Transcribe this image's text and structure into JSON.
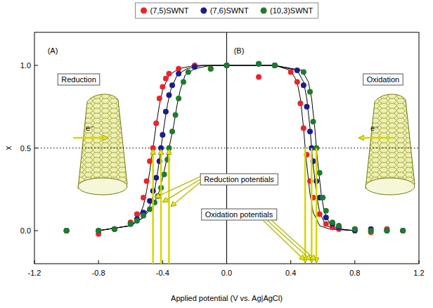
{
  "chart_data": {
    "type": "scatter",
    "xlabel": "Applied potential (V vs. Ag|AgCl)",
    "ylabel": "x",
    "xlim": [
      -1.2,
      1.2
    ],
    "ylim": [
      -0.2,
      1.2
    ],
    "xticks": [
      -1.2,
      -0.8,
      -0.4,
      {
        "value": 0,
        "label": "0.0"
      },
      0.4,
      0.8,
      1.2
    ],
    "yticks": [
      {
        "value": 0,
        "label": "0.0"
      },
      0.5,
      {
        "value": 1,
        "label": "1.0"
      }
    ],
    "legend": "top",
    "reference_line": 0.5,
    "reduction_potentials": [
      -0.46,
      -0.41,
      -0.36
    ],
    "oxidation_potentials": [
      0.49,
      0.53,
      0.56
    ],
    "annotations": [
      "(A)",
      "(B)",
      "Reduction",
      "Oxidation",
      "Reduction potentials",
      "Oxidation potentials",
      "e⁻",
      "e⁻"
    ],
    "series": [
      {
        "type": "line",
        "color": "#000000",
        "line_style": "solid",
        "x": [
          -0.8,
          -0.6,
          -0.55,
          -0.52,
          -0.5,
          -0.48,
          -0.46,
          -0.44,
          -0.42,
          -0.4,
          -0.36,
          -0.3,
          -0.2,
          0.0,
          0.3,
          0.4,
          0.44,
          0.46,
          0.48,
          0.49,
          0.5,
          0.52,
          0.54,
          0.58,
          0.64,
          0.8
        ],
        "values": [
          0.0,
          0.03,
          0.08,
          0.15,
          0.24,
          0.36,
          0.5,
          0.64,
          0.76,
          0.85,
          0.94,
          0.98,
          1.0,
          1.0,
          1.0,
          0.97,
          0.9,
          0.8,
          0.62,
          0.5,
          0.4,
          0.22,
          0.11,
          0.03,
          0.01,
          0.0
        ]
      },
      {
        "type": "line",
        "color": "#000000",
        "line_style": "solid",
        "x": [
          -0.8,
          -0.6,
          -0.52,
          -0.48,
          -0.45,
          -0.43,
          -0.41,
          -0.39,
          -0.37,
          -0.35,
          -0.31,
          -0.25,
          -0.15,
          0.0,
          0.3,
          0.44,
          0.48,
          0.5,
          0.52,
          0.53,
          0.54,
          0.56,
          0.58,
          0.62,
          0.68,
          0.8
        ],
        "values": [
          0.0,
          0.03,
          0.08,
          0.15,
          0.24,
          0.36,
          0.5,
          0.64,
          0.76,
          0.85,
          0.94,
          0.98,
          1.0,
          1.0,
          1.0,
          0.97,
          0.9,
          0.8,
          0.62,
          0.5,
          0.4,
          0.22,
          0.11,
          0.03,
          0.01,
          0.0
        ]
      },
      {
        "type": "line",
        "color": "#000000",
        "line_style": "solid",
        "x": [
          -0.8,
          -0.6,
          -0.52,
          -0.46,
          -0.42,
          -0.39,
          -0.36,
          -0.33,
          -0.31,
          -0.29,
          -0.26,
          -0.2,
          -0.1,
          0.0,
          0.3,
          0.47,
          0.51,
          0.53,
          0.55,
          0.56,
          0.57,
          0.59,
          0.61,
          0.65,
          0.71,
          0.8
        ],
        "values": [
          0.0,
          0.03,
          0.08,
          0.15,
          0.24,
          0.36,
          0.5,
          0.64,
          0.76,
          0.85,
          0.94,
          0.98,
          1.0,
          1.0,
          1.0,
          0.97,
          0.9,
          0.8,
          0.62,
          0.5,
          0.4,
          0.22,
          0.11,
          0.03,
          0.01,
          0.0
        ]
      },
      {
        "name": "(7,5)SWNT",
        "type": "scatter",
        "color": "#e8262a",
        "marker": "circle",
        "x": [
          -1.0,
          -0.8,
          -0.7,
          -0.6,
          -0.56,
          -0.52,
          -0.5,
          -0.48,
          -0.46,
          -0.44,
          -0.42,
          -0.4,
          -0.38,
          -0.36,
          -0.3,
          -0.2,
          -0.1,
          0.0,
          0.2,
          0.3,
          0.4,
          0.44,
          0.46,
          0.48,
          0.5,
          0.52,
          0.54,
          0.58,
          0.62,
          0.66,
          0.7,
          0.8,
          0.9,
          1.0,
          1.1
        ],
        "values": [
          0.0,
          -0.02,
          0.01,
          0.05,
          0.1,
          0.2,
          0.3,
          0.42,
          0.5,
          0.65,
          0.8,
          0.87,
          0.92,
          0.95,
          0.98,
          1.0,
          0.98,
          1.0,
          0.93,
          1.0,
          0.96,
          0.9,
          0.77,
          0.62,
          0.46,
          0.3,
          0.2,
          0.1,
          0.04,
          0.02,
          0.01,
          0.01,
          -0.01,
          0.01,
          0.0
        ]
      },
      {
        "name": "(7,6)SWNT",
        "type": "scatter",
        "color": "#1c1c8c",
        "marker": "circle",
        "x": [
          -1.0,
          -0.8,
          -0.7,
          -0.6,
          -0.56,
          -0.52,
          -0.48,
          -0.46,
          -0.44,
          -0.42,
          -0.41,
          -0.4,
          -0.38,
          -0.36,
          -0.34,
          -0.3,
          -0.2,
          0.0,
          0.2,
          0.3,
          0.44,
          0.48,
          0.5,
          0.52,
          0.53,
          0.54,
          0.56,
          0.58,
          0.62,
          0.66,
          0.7,
          0.8,
          0.9,
          1.0,
          1.1
        ],
        "values": [
          0.0,
          0.0,
          0.01,
          0.04,
          0.07,
          0.11,
          0.18,
          0.24,
          0.32,
          0.42,
          0.5,
          0.58,
          0.72,
          0.82,
          0.88,
          0.95,
          0.99,
          1.0,
          1.01,
          1.0,
          0.97,
          0.88,
          0.75,
          0.6,
          0.5,
          0.42,
          0.3,
          0.2,
          0.08,
          0.04,
          0.02,
          0.0,
          0.01,
          0.0,
          0.0
        ]
      },
      {
        "name": "(10,3)SWNT",
        "type": "scatter",
        "color": "#1e7b2e",
        "marker": "circle",
        "x": [
          -1.0,
          -0.8,
          -0.7,
          -0.6,
          -0.56,
          -0.52,
          -0.48,
          -0.45,
          -0.43,
          -0.41,
          -0.39,
          -0.37,
          -0.36,
          -0.34,
          -0.32,
          -0.3,
          -0.27,
          -0.24,
          -0.1,
          0.0,
          0.2,
          0.3,
          0.48,
          0.52,
          0.54,
          0.56,
          0.58,
          0.6,
          0.62,
          0.66,
          0.7,
          0.8,
          0.9,
          1.0,
          1.1
        ],
        "values": [
          0.0,
          0.0,
          0.01,
          0.04,
          0.06,
          0.09,
          0.13,
          0.17,
          0.21,
          0.26,
          0.34,
          0.43,
          0.5,
          0.6,
          0.7,
          0.8,
          0.9,
          0.96,
          0.98,
          1.0,
          1.01,
          1.0,
          0.96,
          0.84,
          0.66,
          0.5,
          0.35,
          0.2,
          0.12,
          0.05,
          0.03,
          0.01,
          0.0,
          0.0,
          0.0
        ]
      }
    ]
  }
}
